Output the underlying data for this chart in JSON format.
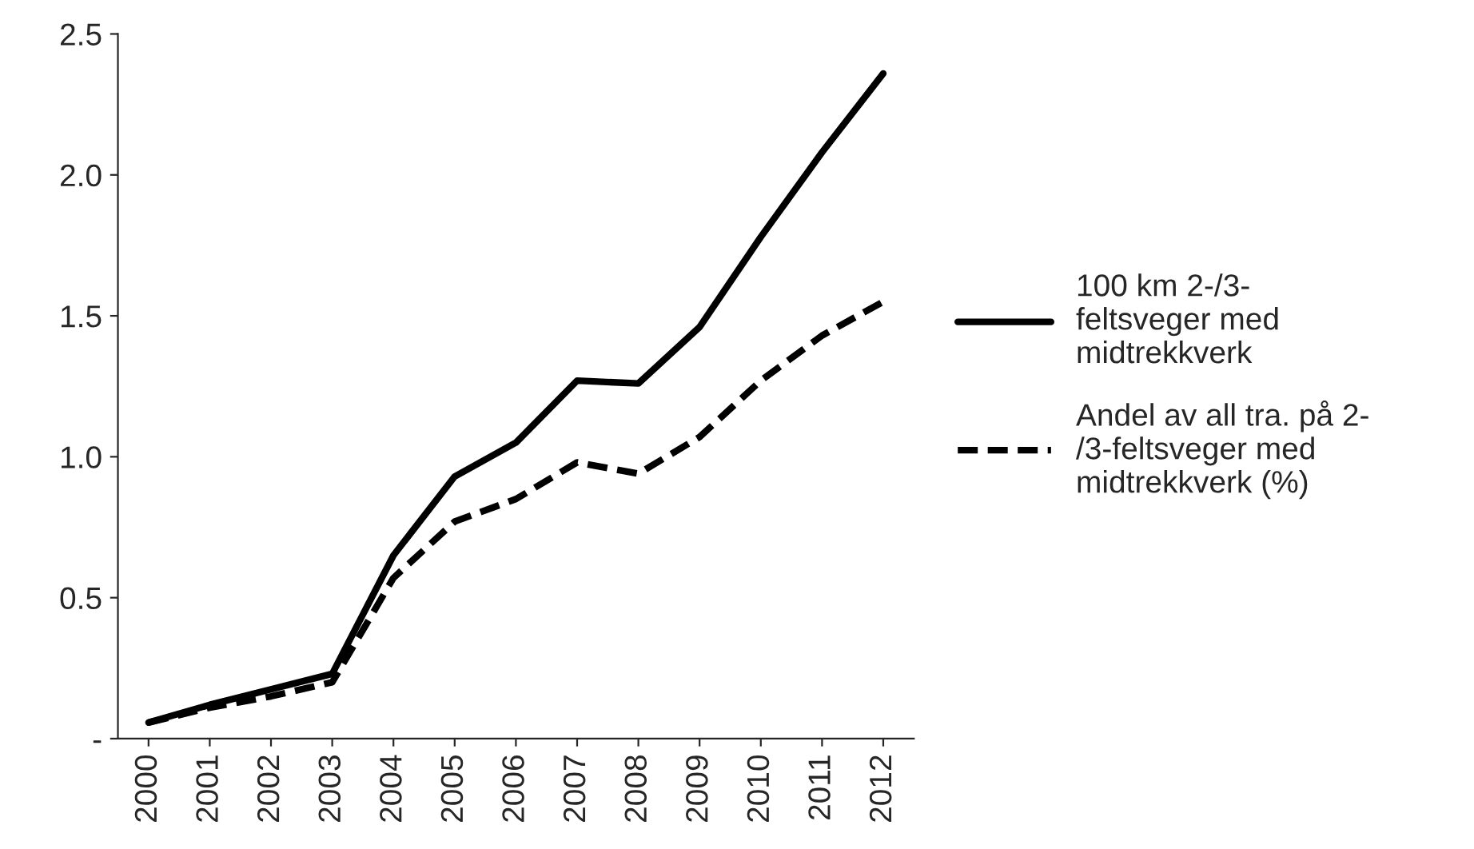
{
  "chart_data": {
    "type": "line",
    "categories": [
      "2000",
      "2001",
      "2002",
      "2003",
      "2004",
      "2005",
      "2006",
      "2007",
      "2008",
      "2009",
      "2010",
      "2011",
      "2012"
    ],
    "series": [
      {
        "name": "100 km 2-/3-\nfeltsveger med\nmidtrekkverk",
        "color": "#000000",
        "line_style": "solid",
        "values": [
          0.057,
          0.12,
          0.175,
          0.23,
          0.65,
          0.93,
          1.05,
          1.27,
          1.26,
          1.46,
          1.78,
          2.08,
          2.36
        ]
      },
      {
        "name": "Andel av all tra. på 2-\n/3-feltsveger med\nmidtrekkverk (%)",
        "color": "#000000",
        "line_style": "dashed",
        "values": [
          0.057,
          0.11,
          0.15,
          0.2,
          0.57,
          0.77,
          0.85,
          0.98,
          0.94,
          1.07,
          1.27,
          1.43,
          1.55
        ]
      }
    ],
    "ylim": [
      0,
      2.5
    ],
    "yticks": [
      {
        "value": 0,
        "label": "-"
      },
      {
        "value": 0.5,
        "label": "0.5"
      },
      {
        "value": 1.0,
        "label": "1.0"
      },
      {
        "value": 1.5,
        "label": "1.5"
      },
      {
        "value": 2.0,
        "label": "2.0"
      },
      {
        "value": 2.5,
        "label": "2.5"
      }
    ],
    "grid": false,
    "legend": "right",
    "marker": "none"
  }
}
